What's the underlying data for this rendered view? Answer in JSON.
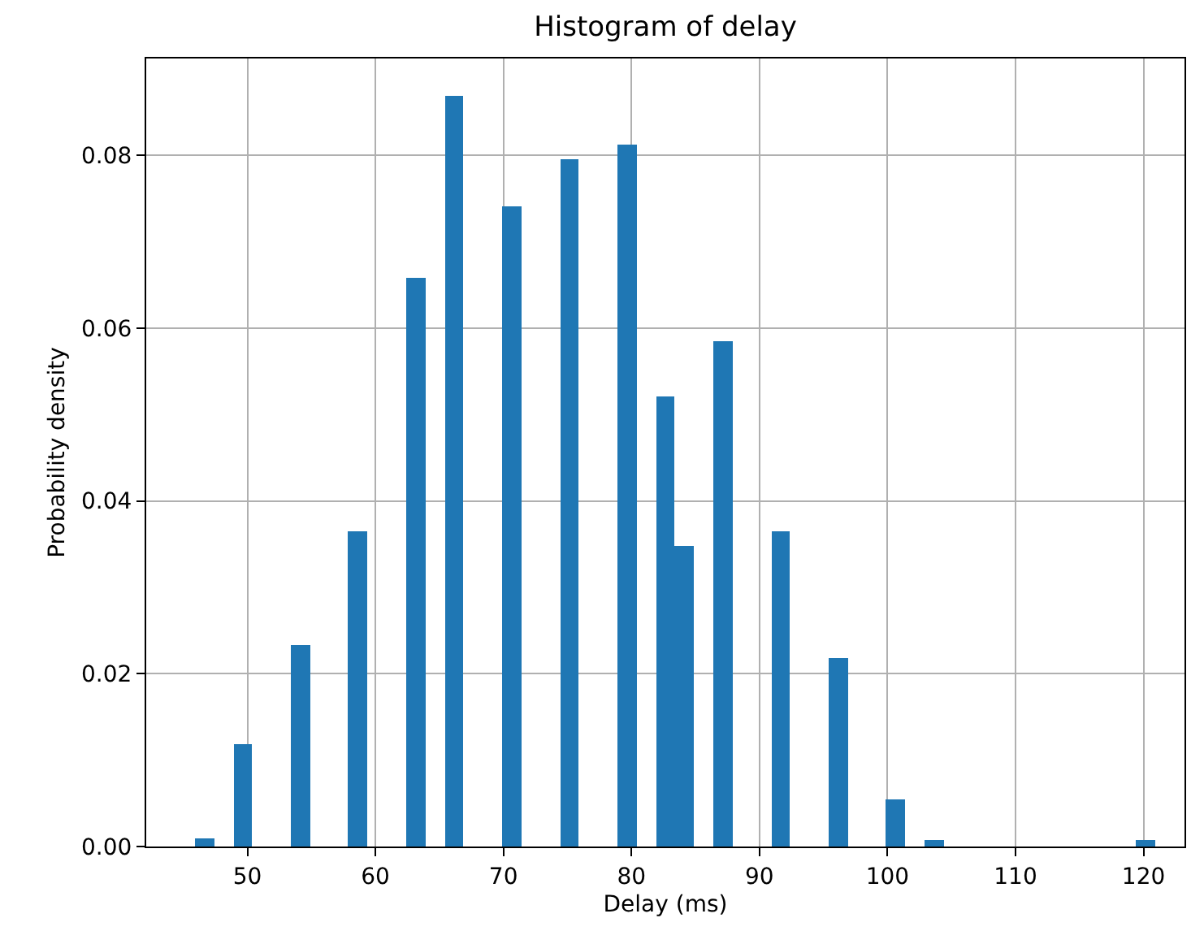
{
  "chart_data": {
    "type": "histogram",
    "title": "Histogram of delay",
    "xlabel": "Delay (ms)",
    "ylabel": "Probability density",
    "bins": [
      45.9,
      47.4,
      48.9,
      50.4,
      51.9,
      53.4,
      54.9,
      56.4,
      57.9,
      59.4,
      60.9,
      62.4,
      63.9,
      65.4,
      66.9,
      68.4,
      69.9,
      71.4,
      72.9,
      74.4,
      75.9,
      77.4,
      78.9,
      80.4,
      81.9,
      83.4,
      84.9,
      86.4,
      87.9,
      89.4,
      90.9,
      92.4,
      93.9,
      95.4,
      96.9,
      98.4,
      99.9,
      101.4,
      102.9,
      104.4,
      105.9,
      107.4,
      108.9,
      110.4,
      111.9,
      113.4,
      114.9,
      116.4,
      117.9,
      119.4,
      120.9
    ],
    "values": [
      0.0009,
      0,
      0.0118,
      0,
      0,
      0.0233,
      0,
      0,
      0.0365,
      0,
      0,
      0.0658,
      0,
      0.0868,
      0,
      0,
      0.074,
      0,
      0,
      0.0795,
      0,
      0,
      0.0813,
      0,
      0.0521,
      0.0348,
      0,
      0.0585,
      0,
      0,
      0.0365,
      0,
      0,
      0.0218,
      0,
      0,
      0.0054,
      0,
      0.0008,
      0,
      0,
      0,
      0,
      0,
      0,
      0,
      0,
      0,
      0,
      0.0008
    ],
    "color": "#1f77b4",
    "xlim": [
      42.1,
      123.2
    ],
    "ylim": [
      0,
      0.0912
    ],
    "xticks": [
      50,
      60,
      70,
      80,
      90,
      100,
      110,
      120
    ],
    "yticks": [
      {
        "value": 0,
        "label": "0.00"
      },
      {
        "value": 0.02,
        "label": "0.02"
      },
      {
        "value": 0.04,
        "label": "0.04"
      },
      {
        "value": 0.06,
        "label": "0.06"
      },
      {
        "value": 0.08,
        "label": "0.08"
      }
    ],
    "grid": true
  }
}
